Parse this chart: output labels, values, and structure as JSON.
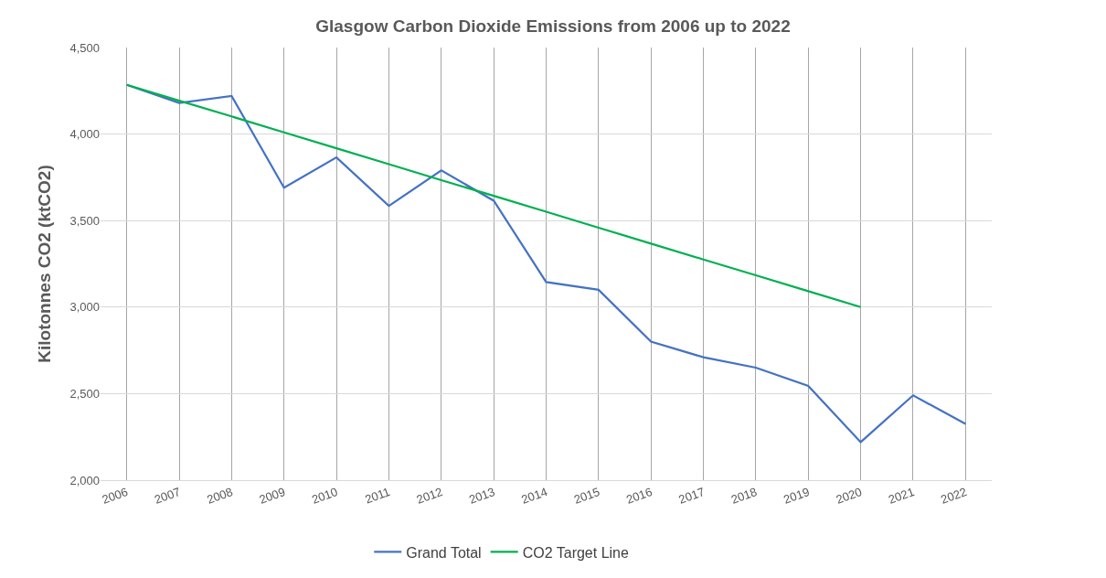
{
  "chart_data": {
    "type": "line",
    "title": "Glasgow Carbon Dioxide Emissions from 2006 up to 2022",
    "ylabel": "Kilotonnes CO2 (ktCO2)",
    "categories": [
      "2006",
      "2007",
      "2008",
      "2009",
      "2010",
      "2011",
      "2012",
      "2013",
      "2014",
      "2015",
      "2016",
      "2017",
      "2018",
      "2019",
      "2020",
      "2021",
      "2022"
    ],
    "series": [
      {
        "name": "Grand Total",
        "color": "#4472c4",
        "values": [
          4285,
          4180,
          4220,
          3690,
          3865,
          3585,
          3790,
          3615,
          3145,
          3100,
          2800,
          2710,
          2650,
          2545,
          2220,
          2490,
          2325
        ]
      },
      {
        "name": "CO2 Target Line",
        "color": "#00b050",
        "values": [
          4285,
          4193,
          4102,
          4010,
          3918,
          3826,
          3734,
          3643,
          3551,
          3459,
          3367,
          3275,
          3184,
          3092,
          3000,
          null,
          null
        ]
      }
    ],
    "ylim": [
      2000,
      4500
    ],
    "yticks": [
      {
        "value": 2000,
        "label": "2,000"
      },
      {
        "value": 2500,
        "label": "2,500"
      },
      {
        "value": 3000,
        "label": "3,000"
      },
      {
        "value": 3500,
        "label": "3,500"
      },
      {
        "value": 4000,
        "label": "4,000"
      },
      {
        "value": 4500,
        "label": "4,500"
      }
    ],
    "grid": true,
    "legend": "bottom",
    "marker": "none",
    "line_style": "solid"
  }
}
